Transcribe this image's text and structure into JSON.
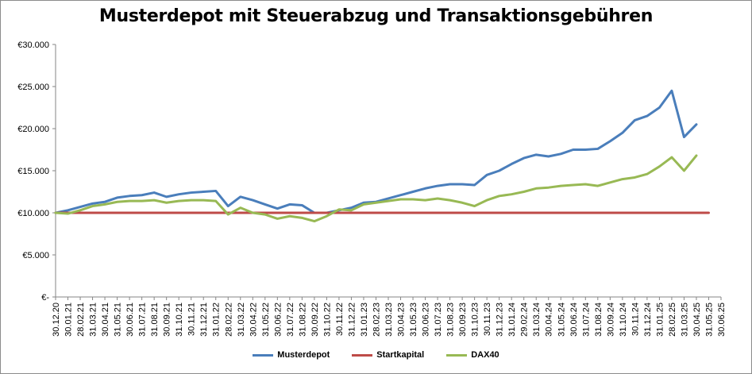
{
  "chart_data": {
    "type": "line",
    "title": "Musterdepot mit Steuerabzug und Transaktionsgebühren",
    "xlabel": "",
    "ylabel": "",
    "ylim": [
      0,
      30000
    ],
    "yticks": [
      {
        "value": 0,
        "label": "€-"
      },
      {
        "value": 5000,
        "label": "€5.000"
      },
      {
        "value": 10000,
        "label": "€10.000"
      },
      {
        "value": 15000,
        "label": "€15.000"
      },
      {
        "value": 20000,
        "label": "€20.000"
      },
      {
        "value": 25000,
        "label": "€25.000"
      },
      {
        "value": 30000,
        "label": "€30.000"
      }
    ],
    "categories": [
      "30.12.20",
      "30.01.21",
      "28.02.21",
      "31.03.21",
      "30.04.21",
      "31.05.21",
      "30.06.21",
      "31.07.21",
      "31.08.21",
      "30.09.21",
      "31.10.21",
      "30.11.21",
      "31.12.21",
      "31.01.22",
      "28.02.22",
      "31.03.22",
      "30.04.22",
      "31.05.22",
      "30.06.22",
      "31.07.22",
      "31.08.22",
      "30.09.22",
      "31.10.22",
      "30.11.22",
      "31.12.22",
      "31.01.23",
      "28.02.23",
      "31.03.23",
      "30.04.23",
      "31.05.23",
      "30.06.23",
      "31.07.23",
      "31.08.23",
      "30.09.23",
      "31.10.23",
      "30.11.23",
      "31.12.23",
      "31.01.24",
      "29.02.24",
      "31.03.24",
      "30.04.24",
      "31.05.24",
      "30.06.24",
      "31.07.24",
      "31.08.24",
      "30.09.24",
      "31.10.24",
      "30.11.24",
      "31.12.24",
      "31.01.25",
      "28.02.25",
      "31.03.25",
      "30.04.25",
      "31.05.25",
      "30.06.25"
    ],
    "grid": false,
    "legend_position": "bottom",
    "series": [
      {
        "name": "Musterdepot",
        "color": "#4a7ebb",
        "values": [
          10000,
          10300,
          10700,
          11100,
          11300,
          11800,
          12000,
          12100,
          12400,
          11900,
          12200,
          12400,
          12500,
          12600,
          10800,
          11900,
          11500,
          11000,
          10500,
          11000,
          10900,
          10000,
          10000,
          10300,
          10600,
          11200,
          11300,
          11700,
          12100,
          12500,
          12900,
          13200,
          13400,
          13400,
          13300,
          14500,
          15000,
          15800,
          16500,
          16900,
          16700,
          17000,
          17500,
          17500,
          17600,
          18500,
          19500,
          21000,
          21500,
          22500,
          24500,
          19000,
          20500,
          null,
          null
        ]
      },
      {
        "name": "Startkapital",
        "color": "#be4b48",
        "values": [
          10000,
          10000,
          10000,
          10000,
          10000,
          10000,
          10000,
          10000,
          10000,
          10000,
          10000,
          10000,
          10000,
          10000,
          10000,
          10000,
          10000,
          10000,
          10000,
          10000,
          10000,
          10000,
          10000,
          10000,
          10000,
          10000,
          10000,
          10000,
          10000,
          10000,
          10000,
          10000,
          10000,
          10000,
          10000,
          10000,
          10000,
          10000,
          10000,
          10000,
          10000,
          10000,
          10000,
          10000,
          10000,
          10000,
          10000,
          10000,
          10000,
          10000,
          10000,
          10000,
          10000,
          10000,
          null
        ]
      },
      {
        "name": "DAX40",
        "color": "#98b954",
        "values": [
          10000,
          9900,
          10300,
          10800,
          11000,
          11300,
          11400,
          11400,
          11500,
          11200,
          11400,
          11500,
          11500,
          11400,
          9800,
          10600,
          10000,
          9800,
          9300,
          9600,
          9400,
          9000,
          9600,
          10400,
          10300,
          11000,
          11200,
          11400,
          11600,
          11600,
          11500,
          11700,
          11500,
          11200,
          10800,
          11500,
          12000,
          12200,
          12500,
          12900,
          13000,
          13200,
          13300,
          13400,
          13200,
          13600,
          14000,
          14200,
          14600,
          15500,
          16600,
          15000,
          16800,
          null,
          null
        ]
      }
    ]
  }
}
